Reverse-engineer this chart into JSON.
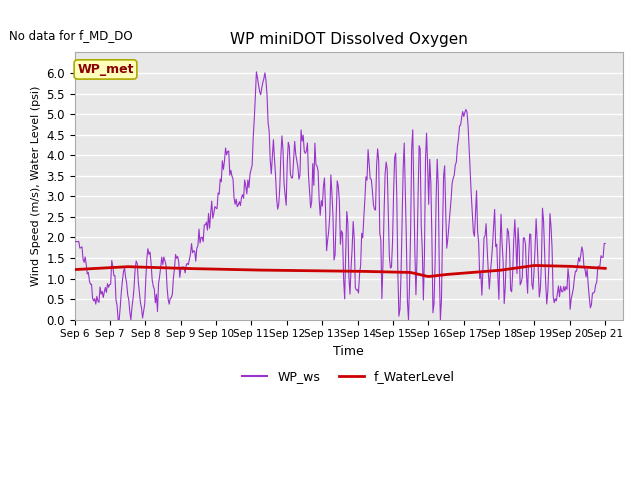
{
  "title": "WP miniDOT Dissolved Oxygen",
  "subtitle": "No data for f_MD_DO",
  "xlabel": "Time",
  "ylabel": "Wind Speed (m/s), Water Level (psi)",
  "ylim": [
    0.0,
    6.5
  ],
  "yticks": [
    0.0,
    0.5,
    1.0,
    1.5,
    2.0,
    2.5,
    3.0,
    3.5,
    4.0,
    4.5,
    5.0,
    5.5,
    6.0
  ],
  "xlim": [
    0,
    15.5
  ],
  "x_tick_positions": [
    0,
    1,
    2,
    3,
    4,
    5,
    6,
    7,
    8,
    9,
    10,
    11,
    12,
    13,
    14,
    15
  ],
  "x_tick_labels": [
    "Sep 6",
    "Sep 7",
    "Sep 8",
    "Sep 9",
    "Sep 10",
    "Sep 11",
    "Sep 12",
    "Sep 13",
    "Sep 14",
    "Sep 15",
    "Sep 16",
    "Sep 17",
    "Sep 18",
    "Sep 19",
    "Sep 20",
    "Sep 21"
  ],
  "wp_ws_color": "#9933cc",
  "f_wl_color": "#cc0000",
  "background_color": "#e8e8e8",
  "legend_label_ws": "WP_ws",
  "legend_label_wl": "f_WaterLevel",
  "annotation_text": "WP_met",
  "figsize": [
    6.4,
    4.8
  ],
  "dpi": 100
}
